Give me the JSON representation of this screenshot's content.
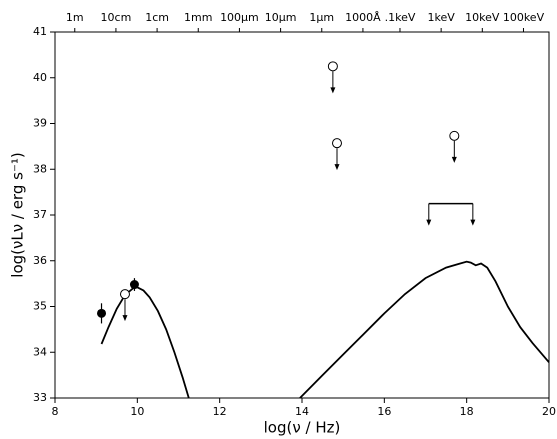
{
  "chart_data": {
    "type": "line",
    "xlabel": "log(ν / Hz)",
    "ylabel": "log(νLν / erg s⁻¹)",
    "xlim": [
      8,
      20
    ],
    "ylim": [
      33,
      41
    ],
    "xticks": [
      8,
      10,
      12,
      14,
      16,
      18,
      20
    ],
    "yticks": [
      33,
      34,
      35,
      36,
      37,
      38,
      39,
      40,
      41
    ],
    "top_ticks": [
      {
        "value": 8.48,
        "label": "1m"
      },
      {
        "value": 9.48,
        "label": "10cm"
      },
      {
        "value": 10.48,
        "label": "1cm"
      },
      {
        "value": 11.48,
        "label": "1mm"
      },
      {
        "value": 12.48,
        "label": "100μm"
      },
      {
        "value": 13.48,
        "label": "10μm"
      },
      {
        "value": 14.48,
        "label": "1μm"
      },
      {
        "value": 15.48,
        "label": "1000Å"
      },
      {
        "value": 16.38,
        "label": ".1keV"
      },
      {
        "value": 17.38,
        "label": "1keV"
      },
      {
        "value": 18.38,
        "label": "10keV"
      },
      {
        "value": 19.38,
        "label": "100keV"
      }
    ],
    "series": [
      {
        "color": "#000000",
        "x": [
          9.13,
          9.3,
          9.5,
          9.7,
          9.9,
          10.0,
          10.15,
          10.3,
          10.5,
          10.7,
          10.9,
          11.1,
          11.25,
          12.5,
          13.95,
          14.5,
          15.0,
          15.5,
          16.0,
          16.5,
          17.0,
          17.5,
          17.8,
          18.0,
          18.1,
          18.22,
          18.35,
          18.5,
          18.7,
          19.0,
          19.3,
          19.6,
          20.0
        ],
        "values": [
          34.18,
          34.55,
          34.95,
          35.25,
          35.4,
          35.42,
          35.35,
          35.2,
          34.9,
          34.5,
          34.0,
          33.45,
          33.0,
          null,
          33.0,
          33.5,
          33.95,
          34.4,
          34.85,
          35.27,
          35.62,
          35.85,
          35.93,
          35.98,
          35.96,
          35.9,
          35.94,
          35.85,
          35.55,
          35.0,
          34.55,
          34.2,
          33.78
        ]
      }
    ],
    "detections": {
      "x": [
        9.13,
        9.93
      ],
      "values": [
        34.85,
        35.48
      ],
      "errors": [
        0.22,
        0.14
      ]
    },
    "upper_limits": {
      "x": [
        9.7,
        14.75,
        14.85,
        17.7
      ],
      "values": [
        35.27,
        40.25,
        38.57,
        38.73
      ]
    },
    "band_limit": {
      "x": [
        17.08,
        18.15
      ],
      "value": 37.25
    }
  }
}
